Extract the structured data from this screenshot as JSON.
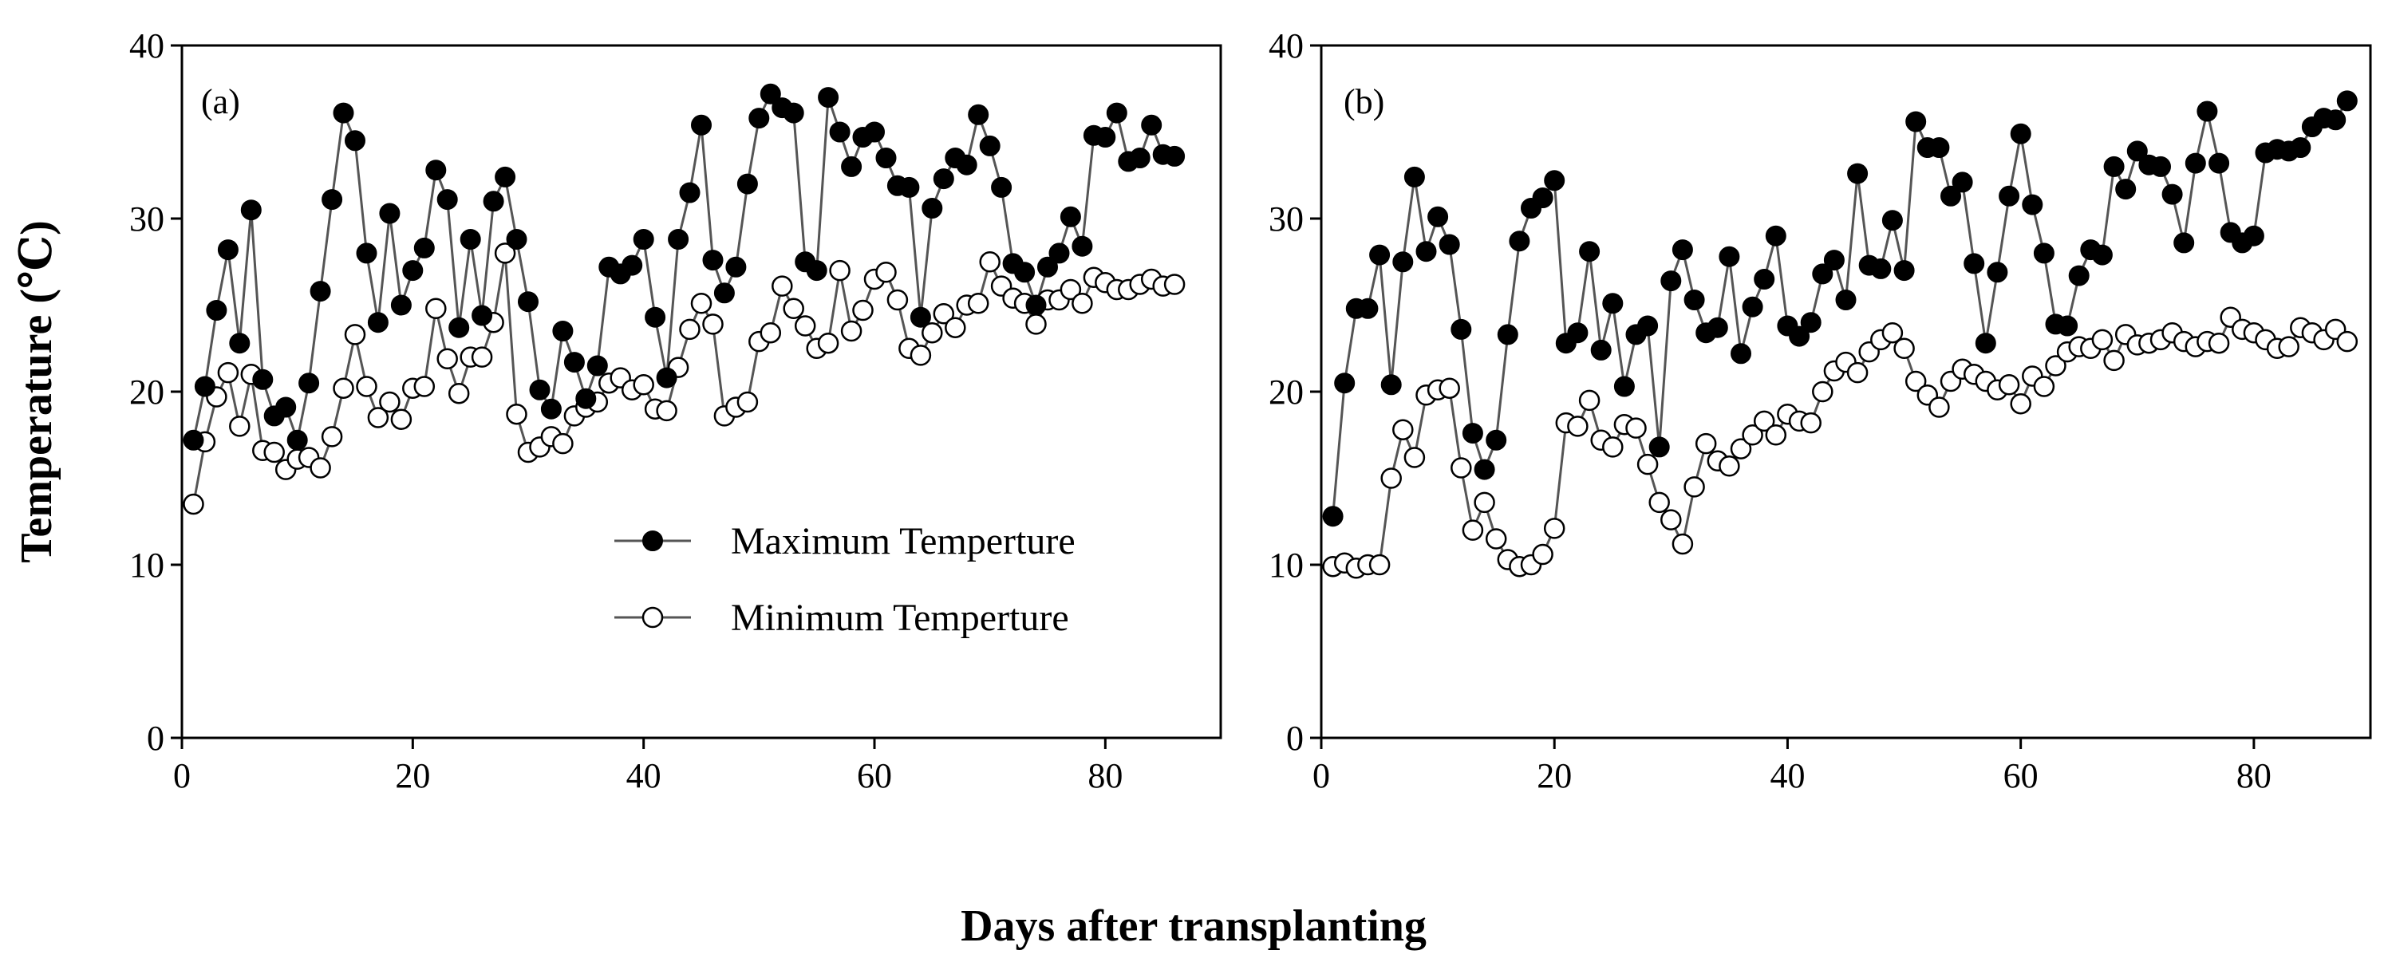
{
  "shared": {
    "xlabel": "Days after transplanting",
    "ylabel": "Temperature (℃)"
  },
  "legend": {
    "items": [
      "Maximum Temperture",
      "Minimum Temperture"
    ],
    "colors": {
      "max_fill": "#000000",
      "min_fill": "#ffffff",
      "line": "#555555"
    }
  },
  "chart_data": [
    {
      "type": "line",
      "panel_label": "(a)",
      "xlim": [
        0,
        90
      ],
      "ylim": [
        0,
        40
      ],
      "xticks": [
        0,
        20,
        40,
        60,
        80
      ],
      "yticks": [
        0,
        10,
        20,
        30,
        40
      ],
      "legend_placement": "center-right",
      "grid": false,
      "x": [
        1,
        2,
        3,
        4,
        5,
        6,
        7,
        8,
        9,
        10,
        11,
        12,
        13,
        14,
        15,
        16,
        17,
        18,
        19,
        20,
        21,
        22,
        23,
        24,
        25,
        26,
        27,
        28,
        29,
        30,
        31,
        32,
        33,
        34,
        35,
        36,
        37,
        38,
        39,
        40,
        41,
        42,
        43,
        44,
        45,
        46,
        47,
        48,
        49,
        50,
        51,
        52,
        53,
        54,
        55,
        56,
        57,
        58,
        59,
        60,
        61,
        62,
        63,
        64,
        65,
        66,
        67,
        68,
        69,
        70,
        71,
        72,
        73,
        74,
        75,
        76,
        77,
        78,
        79,
        80,
        81,
        82,
        83,
        84,
        85,
        86
      ],
      "series": [
        {
          "name": "Maximum Temperture",
          "marker": "filled-circle",
          "values": [
            17.2,
            20.3,
            24.7,
            28.2,
            22.8,
            30.5,
            20.7,
            18.6,
            19.1,
            17.2,
            20.5,
            25.8,
            31.1,
            36.1,
            34.5,
            28.0,
            24.0,
            30.3,
            25.0,
            27.0,
            28.3,
            32.8,
            31.1,
            23.7,
            28.8,
            24.4,
            31.0,
            32.4,
            28.8,
            25.2,
            20.1,
            19.0,
            23.5,
            21.7,
            19.6,
            21.5,
            27.2,
            26.8,
            27.3,
            28.8,
            24.3,
            20.8,
            28.8,
            31.5,
            35.4,
            27.6,
            25.7,
            27.2,
            32.0,
            35.8,
            37.2,
            36.4,
            36.1,
            27.5,
            27.0,
            37.0,
            35.0,
            33.0,
            34.7,
            35.0,
            33.5,
            31.9,
            31.8,
            24.3,
            30.6,
            32.3,
            33.5,
            33.1,
            36.0,
            34.2,
            31.8,
            27.4,
            26.9,
            25.0,
            27.2,
            28.0,
            30.1,
            28.4,
            34.8,
            34.7,
            36.1,
            33.3,
            33.5,
            35.4,
            33.7,
            33.6
          ]
        },
        {
          "name": "Minimum Temperture",
          "marker": "open-circle",
          "values": [
            13.5,
            17.1,
            19.7,
            21.1,
            18.0,
            21.0,
            16.6,
            16.5,
            15.5,
            16.1,
            16.2,
            15.6,
            17.4,
            20.2,
            23.3,
            20.3,
            18.5,
            19.4,
            18.4,
            20.2,
            20.3,
            24.8,
            21.9,
            19.9,
            22.0,
            22.0,
            24.0,
            28.0,
            18.7,
            16.5,
            16.8,
            17.4,
            17.0,
            18.6,
            19.1,
            19.4,
            20.5,
            20.8,
            20.1,
            20.4,
            19.0,
            18.9,
            21.4,
            23.6,
            25.1,
            23.9,
            18.6,
            19.1,
            19.4,
            22.9,
            23.4,
            26.1,
            24.8,
            23.8,
            22.5,
            22.8,
            27.0,
            23.5,
            24.7,
            26.5,
            26.9,
            25.3,
            22.5,
            22.1,
            23.4,
            24.5,
            23.7,
            25.0,
            25.1,
            27.5,
            26.1,
            25.4,
            25.1,
            23.9,
            25.3,
            25.3,
            25.9,
            25.1,
            26.6,
            26.3,
            25.9,
            25.9,
            26.2,
            26.5,
            26.1,
            26.2
          ]
        }
      ]
    },
    {
      "type": "line",
      "panel_label": "(b)",
      "xlim": [
        0,
        90
      ],
      "ylim": [
        0,
        40
      ],
      "xticks": [
        0,
        20,
        40,
        60,
        80
      ],
      "yticks": [
        0,
        10,
        20,
        30,
        40
      ],
      "grid": false,
      "x": [
        1,
        2,
        3,
        4,
        5,
        6,
        7,
        8,
        9,
        10,
        11,
        12,
        13,
        14,
        15,
        16,
        17,
        18,
        19,
        20,
        21,
        22,
        23,
        24,
        25,
        26,
        27,
        28,
        29,
        30,
        31,
        32,
        33,
        34,
        35,
        36,
        37,
        38,
        39,
        40,
        41,
        42,
        43,
        44,
        45,
        46,
        47,
        48,
        49,
        50,
        51,
        52,
        53,
        54,
        55,
        56,
        57,
        58,
        59,
        60,
        61,
        62,
        63,
        64,
        65,
        66,
        67,
        68,
        69,
        70,
        71,
        72,
        73,
        74,
        75,
        76,
        77,
        78,
        79,
        80,
        81,
        82,
        83,
        84,
        85,
        86,
        87,
        88
      ],
      "series": [
        {
          "name": "Maximum Temperture",
          "marker": "filled-circle",
          "values": [
            12.8,
            20.5,
            24.8,
            24.8,
            27.9,
            20.4,
            27.5,
            32.4,
            28.1,
            30.1,
            28.5,
            23.6,
            17.6,
            15.5,
            17.2,
            23.3,
            28.7,
            30.6,
            31.2,
            32.2,
            22.8,
            23.4,
            28.1,
            22.4,
            25.1,
            20.3,
            23.3,
            23.8,
            16.8,
            26.4,
            28.2,
            25.3,
            23.4,
            23.7,
            27.8,
            22.2,
            24.9,
            26.5,
            29.0,
            23.8,
            23.2,
            24.0,
            26.8,
            27.6,
            25.3,
            32.6,
            27.3,
            27.1,
            29.9,
            27.0,
            35.6,
            34.1,
            34.1,
            31.3,
            32.1,
            27.4,
            22.8,
            26.9,
            31.3,
            34.9,
            30.8,
            28.0,
            23.9,
            23.8,
            26.7,
            28.2,
            27.9,
            33.0,
            31.7,
            33.9,
            33.1,
            33.0,
            31.4,
            28.6,
            33.2,
            36.2,
            33.2,
            29.2,
            28.6,
            29.0,
            33.8,
            34.0,
            33.9,
            34.1,
            35.3,
            35.8,
            35.7,
            36.8
          ]
        },
        {
          "name": "Minimum Temperture",
          "marker": "open-circle",
          "values": [
            9.9,
            10.1,
            9.8,
            10.0,
            10.0,
            15.0,
            17.8,
            16.2,
            19.8,
            20.1,
            20.2,
            15.6,
            12.0,
            13.6,
            11.5,
            10.3,
            9.9,
            10.0,
            10.6,
            12.1,
            18.2,
            18.0,
            19.5,
            17.2,
            16.8,
            18.1,
            17.9,
            15.8,
            13.6,
            12.6,
            11.2,
            14.5,
            17.0,
            16.0,
            15.7,
            16.7,
            17.5,
            18.3,
            17.5,
            18.7,
            18.3,
            18.2,
            20.0,
            21.2,
            21.7,
            21.1,
            22.3,
            23.0,
            23.4,
            22.5,
            20.6,
            19.8,
            19.1,
            20.6,
            21.3,
            21.0,
            20.6,
            20.1,
            20.4,
            19.3,
            20.9,
            20.3,
            21.5,
            22.3,
            22.6,
            22.5,
            23.0,
            21.8,
            23.3,
            22.7,
            22.8,
            23.0,
            23.4,
            22.9,
            22.6,
            22.9,
            22.8,
            24.3,
            23.6,
            23.4,
            23.0,
            22.5,
            22.6,
            23.7,
            23.4,
            23.0,
            23.6,
            22.9
          ]
        }
      ]
    }
  ]
}
